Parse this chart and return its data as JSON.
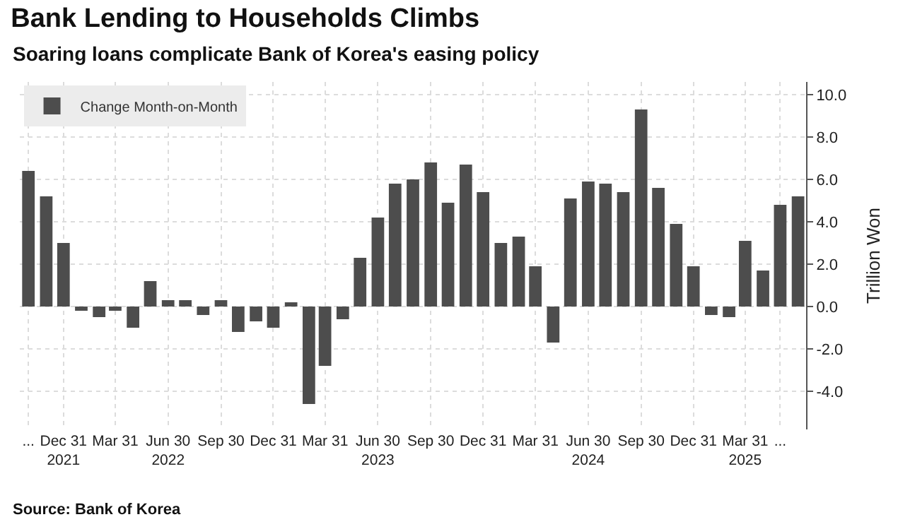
{
  "chart_data": {
    "type": "bar",
    "title": "Bank Lending to Households Climbs",
    "subtitle": "Soaring loans complicate Bank of Korea's easing policy",
    "ylabel": "Trillion Won",
    "x": [
      "2021-10",
      "2021-11",
      "2021-12",
      "2022-01",
      "2022-02",
      "2022-03",
      "2022-04",
      "2022-05",
      "2022-06",
      "2022-07",
      "2022-08",
      "2022-09",
      "2022-10",
      "2022-11",
      "2022-12",
      "2023-01",
      "2023-02",
      "2023-03",
      "2023-04",
      "2023-05",
      "2023-06",
      "2023-07",
      "2023-08",
      "2023-09",
      "2023-10",
      "2023-11",
      "2023-12",
      "2024-01",
      "2024-02",
      "2024-03",
      "2024-04",
      "2024-05",
      "2024-06",
      "2024-07",
      "2024-08",
      "2024-09",
      "2024-10",
      "2024-11",
      "2024-12",
      "2025-01",
      "2025-02",
      "2025-03",
      "2025-04",
      "2025-05",
      "2025-06"
    ],
    "series": [
      {
        "name": "Change Month-on-Month",
        "color": "#4d4d4d",
        "values": [
          6.4,
          5.2,
          3.0,
          -0.2,
          -0.5,
          -0.2,
          -1.0,
          1.2,
          0.3,
          0.3,
          -0.4,
          0.3,
          -1.2,
          -0.7,
          -1.0,
          0.2,
          -4.6,
          -2.8,
          -0.6,
          2.3,
          4.2,
          5.8,
          6.0,
          6.8,
          4.9,
          6.7,
          5.4,
          3.0,
          3.3,
          1.9,
          -1.7,
          5.1,
          5.9,
          5.8,
          5.4,
          9.3,
          5.6,
          3.9,
          1.9,
          -0.4,
          -0.5,
          3.1,
          1.7,
          4.8,
          5.2
        ]
      }
    ],
    "xlim": [
      "2021-09-16",
      "2025-06-15"
    ],
    "xticks": [
      {
        "value": "2021-10",
        "label": "..."
      },
      {
        "value": "2021-12",
        "label": "Dec 31\n2021"
      },
      {
        "value": "2022-03",
        "label": "Mar 31"
      },
      {
        "value": "2022-06",
        "label": "Jun 30\n2022"
      },
      {
        "value": "2022-09",
        "label": "Sep 30"
      },
      {
        "value": "2022-12",
        "label": "Dec 31"
      },
      {
        "value": "2023-03",
        "label": "Mar 31"
      },
      {
        "value": "2023-06",
        "label": "Jun 30\n2023"
      },
      {
        "value": "2023-09",
        "label": "Sep 30"
      },
      {
        "value": "2023-12",
        "label": "Dec 31"
      },
      {
        "value": "2024-03",
        "label": "Mar 31"
      },
      {
        "value": "2024-06",
        "label": "Jun 30\n2024"
      },
      {
        "value": "2024-09",
        "label": "Sep 30"
      },
      {
        "value": "2024-12",
        "label": "Dec 31"
      },
      {
        "value": "2025-03",
        "label": "Mar 31\n2025"
      },
      {
        "value": "2025-05",
        "label": "..."
      }
    ],
    "ylim": [
      -5.8,
      10.6
    ],
    "yticks": [
      {
        "value": -4,
        "label": "-4.0"
      },
      {
        "value": -2,
        "label": "-2.0"
      },
      {
        "value": 0,
        "label": "0.0"
      },
      {
        "value": 2,
        "label": "2.0"
      },
      {
        "value": 4,
        "label": "4.0"
      },
      {
        "value": 6,
        "label": "6.0"
      },
      {
        "value": 8,
        "label": "8.0"
      },
      {
        "value": 10,
        "label": "10.0"
      }
    ],
    "grid": true,
    "legend": "top left",
    "annotations": [
      "Source: Bank of Korea"
    ]
  }
}
